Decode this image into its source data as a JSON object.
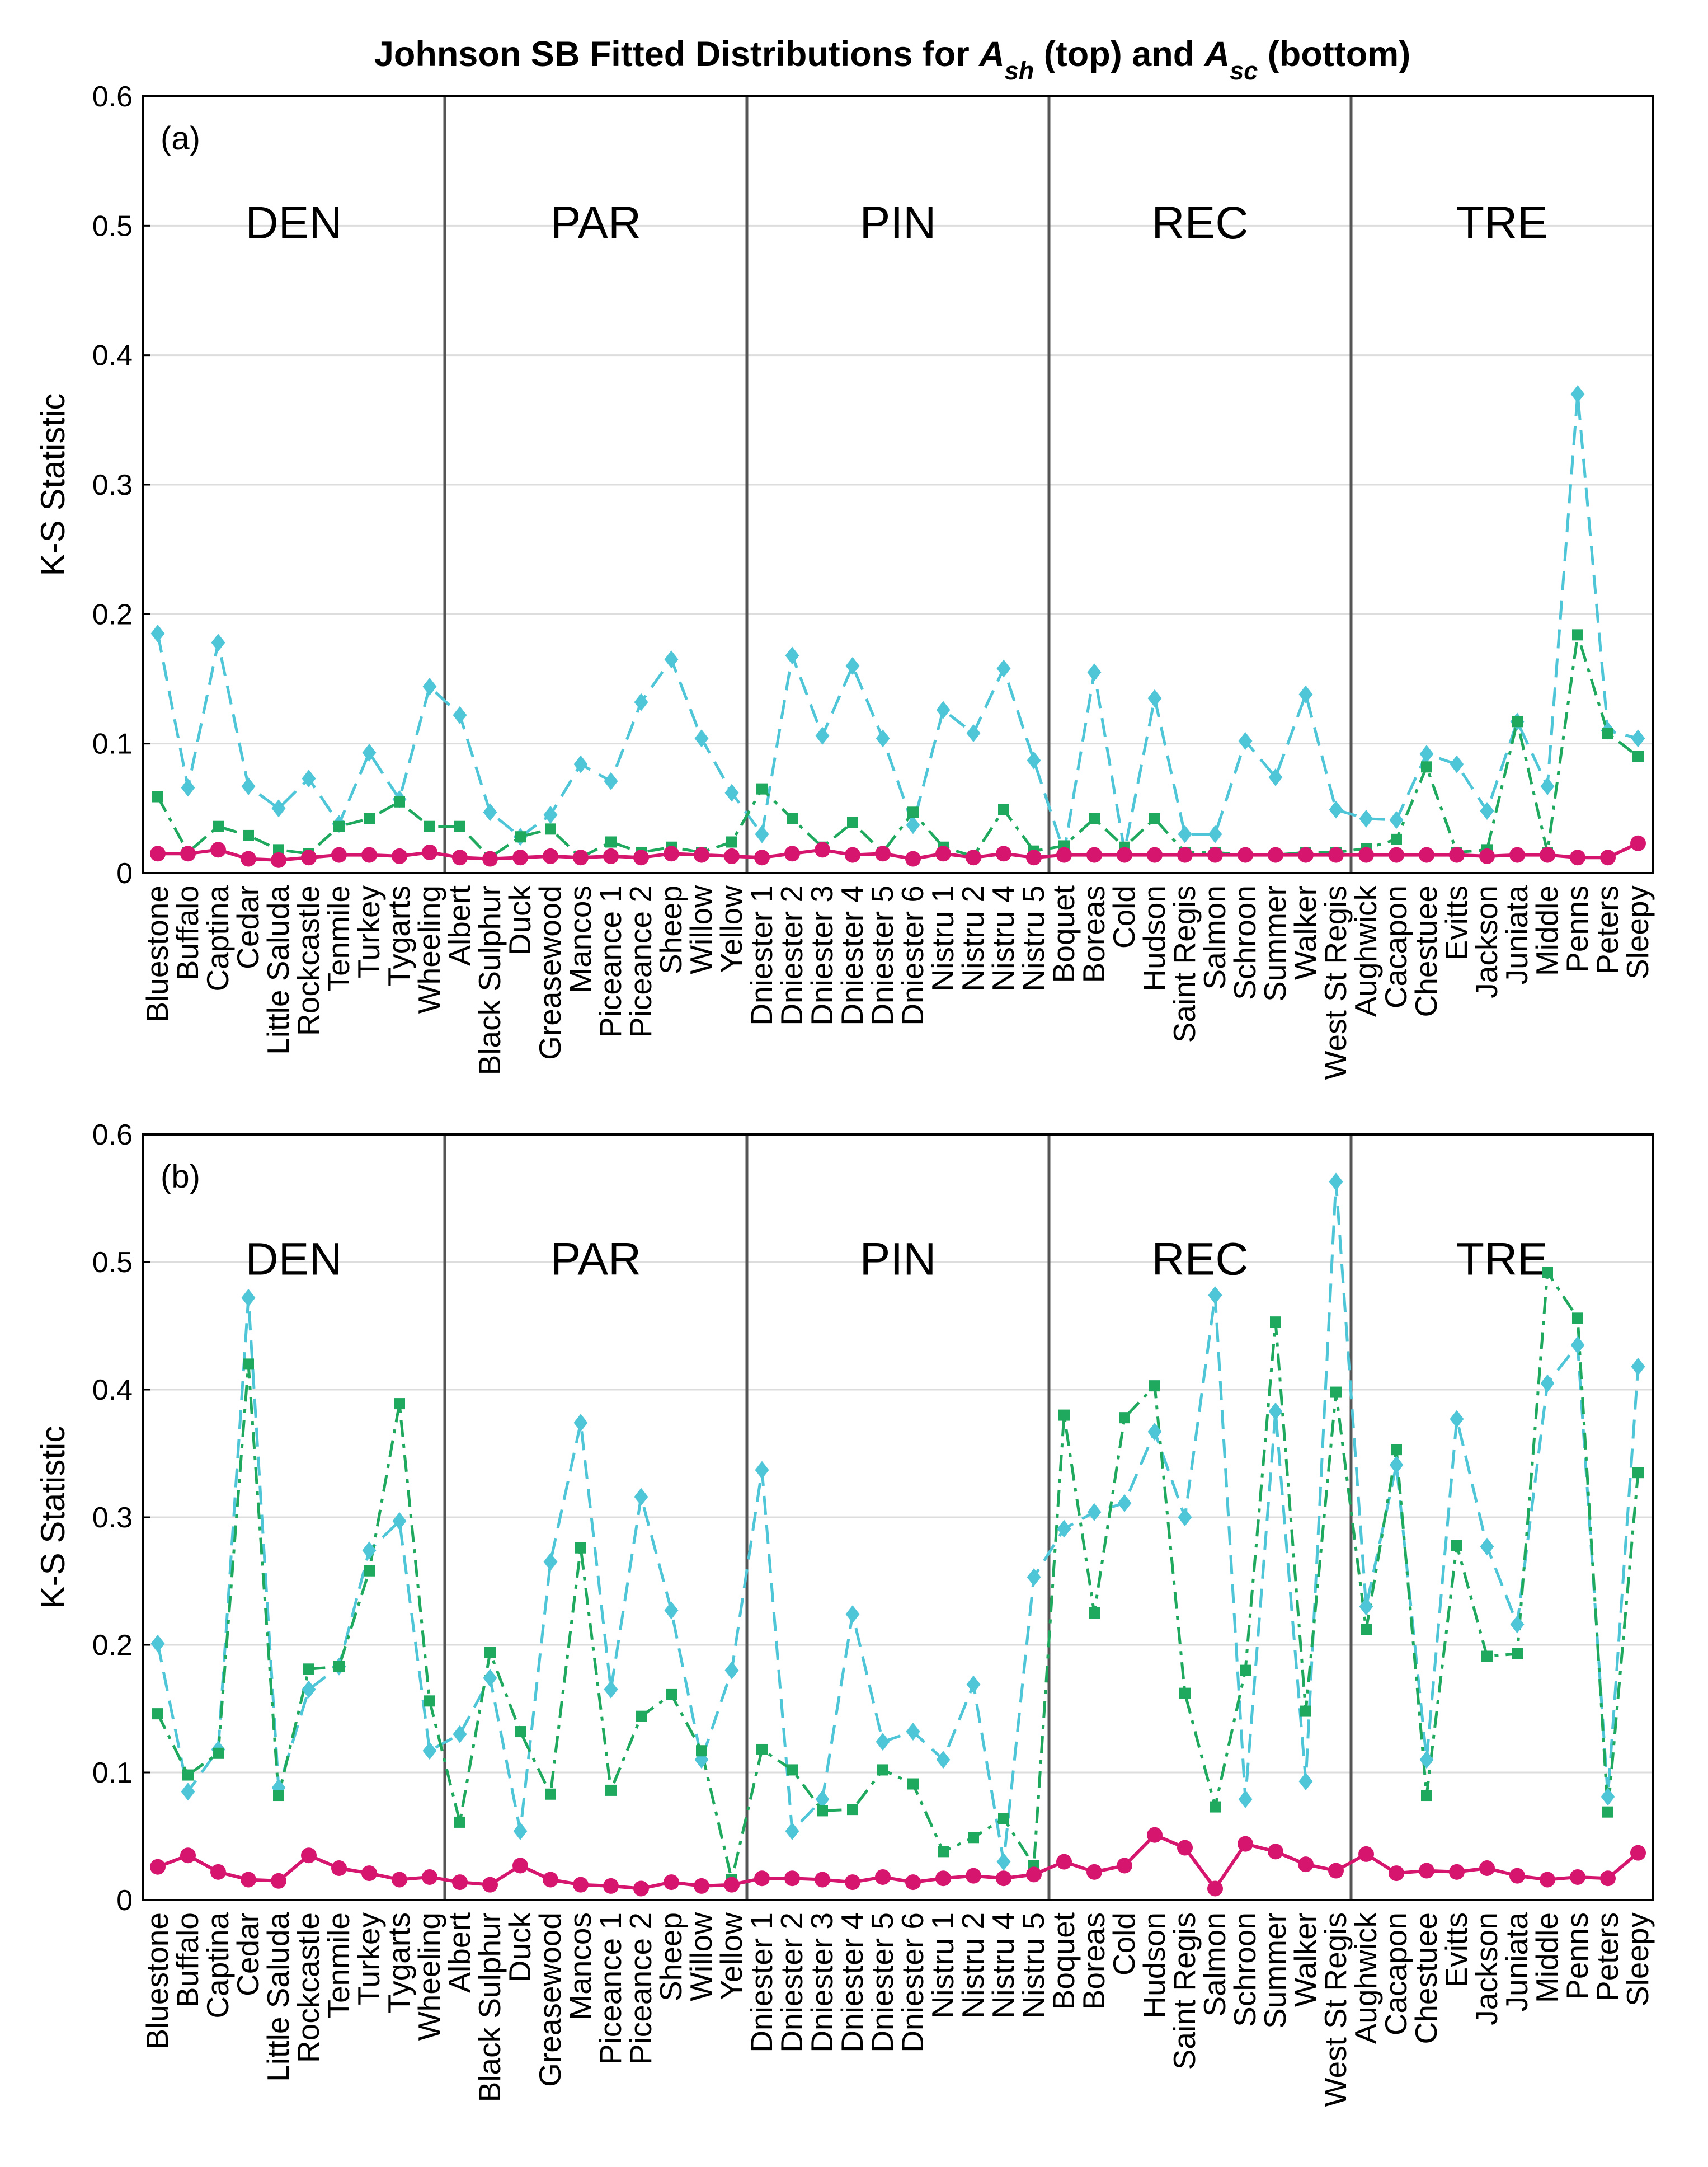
{
  "figure_title": {
    "prefix": "Johnson SB Fitted Distributions for ",
    "sym1": "A",
    "sub1": "sh",
    "middle": " (top) and ",
    "sym2": "A",
    "sub2": "sc",
    "suffix": " (bottom)"
  },
  "colors": {
    "cyan": "#4EC6D8",
    "green": "#1FA95F",
    "magenta": "#D6166E",
    "divider": "#555555",
    "grid": "#dddddd"
  },
  "chart_data": [
    {
      "type": "line",
      "panel_label": "(a)",
      "title": "Johnson SB Fitted Distributions for A_sh (top)",
      "xlabel": "",
      "ylabel": "K-S Statistic",
      "ylim": [
        0,
        0.6
      ],
      "yticks": [
        "0",
        "0.1",
        "0.2",
        "0.3",
        "0.4",
        "0.5",
        "0.6"
      ],
      "grid": true,
      "regions": [
        {
          "label": "DEN",
          "start": 0,
          "end": 9
        },
        {
          "label": "PAR",
          "start": 10,
          "end": 19
        },
        {
          "label": "PIN",
          "start": 20,
          "end": 29
        },
        {
          "label": "REC",
          "start": 30,
          "end": 39
        },
        {
          "label": "TRE",
          "start": 40,
          "end": 49
        }
      ],
      "categories": [
        "Bluestone",
        "Buffalo",
        "Captina",
        "Cedar",
        "Little Saluda",
        "Rockcastle",
        "Tenmile",
        "Turkey",
        "Tygarts",
        "Wheeling",
        "Albert",
        "Black Sulphur",
        "Duck",
        "Greasewood",
        "Mancos",
        "Piceance 1",
        "Piceance 2",
        "Sheep",
        "Willow",
        "Yellow",
        "Dniester 1",
        "Dniester 2",
        "Dniester 3",
        "Dniester 4",
        "Dniester 5",
        "Dniester 6",
        "Nistru 1",
        "Nistru 2",
        "Nistru 4",
        "Nistru 5",
        "Boquet",
        "Boreas",
        "Cold",
        "Hudson",
        "Saint Regis",
        "Salmon",
        "Schroon",
        "Summer",
        "Walker",
        "West St Regis",
        "Aughwick",
        "Cacapon",
        "Chestuee",
        "Evitts",
        "Jackson",
        "Juniata",
        "Middle",
        "Penns",
        "Peters",
        "Sleepy"
      ],
      "series": [
        {
          "name": "cyan diamonds (dashed)",
          "color": "#4EC6D8",
          "marker": "diamond",
          "dash": "dashed",
          "values": [
            0.185,
            0.066,
            0.178,
            0.067,
            0.05,
            0.073,
            0.038,
            0.093,
            0.057,
            0.144,
            0.122,
            0.047,
            0.028,
            0.045,
            0.084,
            0.071,
            0.132,
            0.165,
            0.104,
            0.062,
            0.03,
            0.168,
            0.106,
            0.16,
            0.104,
            0.037,
            0.126,
            0.108,
            0.158,
            0.087,
            0.016,
            0.155,
            0.017,
            0.135,
            0.03,
            0.03,
            0.102,
            0.074,
            0.138,
            0.049,
            0.042,
            0.041,
            0.092,
            0.084,
            0.048,
            0.117,
            0.067,
            0.37,
            0.11,
            0.104
          ]
        },
        {
          "name": "green squares (dash-dot)",
          "color": "#1FA95F",
          "marker": "square",
          "dash": "dashdot",
          "values": [
            0.059,
            0.016,
            0.036,
            0.029,
            0.018,
            0.015,
            0.036,
            0.042,
            0.055,
            0.036,
            0.036,
            0.012,
            0.028,
            0.034,
            0.012,
            0.024,
            0.016,
            0.02,
            0.016,
            0.024,
            0.065,
            0.042,
            0.02,
            0.039,
            0.016,
            0.047,
            0.02,
            0.013,
            0.049,
            0.017,
            0.021,
            0.042,
            0.02,
            0.042,
            0.016,
            0.016,
            0.014,
            0.014,
            0.016,
            0.016,
            0.019,
            0.026,
            0.082,
            0.016,
            0.018,
            0.117,
            0.016,
            0.184,
            0.108,
            0.09
          ]
        },
        {
          "name": "magenta circles (solid)",
          "color": "#D6166E",
          "marker": "circle",
          "dash": "solid",
          "values": [
            0.015,
            0.015,
            0.018,
            0.011,
            0.01,
            0.012,
            0.014,
            0.014,
            0.013,
            0.016,
            0.012,
            0.011,
            0.012,
            0.013,
            0.012,
            0.013,
            0.012,
            0.015,
            0.014,
            0.013,
            0.012,
            0.015,
            0.018,
            0.014,
            0.015,
            0.011,
            0.015,
            0.012,
            0.015,
            0.012,
            0.014,
            0.014,
            0.014,
            0.014,
            0.014,
            0.014,
            0.014,
            0.014,
            0.014,
            0.014,
            0.014,
            0.014,
            0.014,
            0.014,
            0.013,
            0.014,
            0.014,
            0.012,
            0.012,
            0.023
          ]
        }
      ]
    },
    {
      "type": "line",
      "panel_label": "(b)",
      "title": "Johnson SB Fitted Distributions for A_sc (bottom)",
      "xlabel": "",
      "ylabel": "K-S Statistic",
      "ylim": [
        0,
        0.6
      ],
      "yticks": [
        "0",
        "0.1",
        "0.2",
        "0.3",
        "0.4",
        "0.5",
        "0.6"
      ],
      "grid": true,
      "regions": [
        {
          "label": "DEN",
          "start": 0,
          "end": 9
        },
        {
          "label": "PAR",
          "start": 10,
          "end": 19
        },
        {
          "label": "PIN",
          "start": 20,
          "end": 29
        },
        {
          "label": "REC",
          "start": 30,
          "end": 39
        },
        {
          "label": "TRE",
          "start": 40,
          "end": 49
        }
      ],
      "categories": [
        "Bluestone",
        "Buffalo",
        "Captina",
        "Cedar",
        "Little Saluda",
        "Rockcastle",
        "Tenmile",
        "Turkey",
        "Tygarts",
        "Wheeling",
        "Albert",
        "Black Sulphur",
        "Duck",
        "Greasewood",
        "Mancos",
        "Piceance 1",
        "Piceance 2",
        "Sheep",
        "Willow",
        "Yellow",
        "Dniester 1",
        "Dniester 2",
        "Dniester 3",
        "Dniester 4",
        "Dniester 5",
        "Dniester 6",
        "Nistru 1",
        "Nistru 2",
        "Nistru 4",
        "Nistru 5",
        "Boquet",
        "Boreas",
        "Cold",
        "Hudson",
        "Saint Regis",
        "Salmon",
        "Schroon",
        "Summer",
        "Walker",
        "West St Regis",
        "Aughwick",
        "Cacapon",
        "Chestuee",
        "Evitts",
        "Jackson",
        "Juniata",
        "Middle",
        "Penns",
        "Peters",
        "Sleepy"
      ],
      "series": [
        {
          "name": "cyan diamonds (dashed)",
          "color": "#4EC6D8",
          "marker": "diamond",
          "dash": "dashed",
          "values": [
            0.201,
            0.085,
            0.118,
            0.472,
            0.088,
            0.165,
            0.183,
            0.274,
            0.297,
            0.117,
            0.13,
            0.174,
            0.054,
            0.265,
            0.374,
            0.165,
            0.316,
            0.227,
            0.11,
            0.18,
            0.337,
            0.054,
            0.079,
            0.224,
            0.124,
            0.132,
            0.11,
            0.169,
            0.03,
            0.253,
            0.291,
            0.304,
            0.311,
            0.367,
            0.3,
            0.474,
            0.079,
            0.383,
            0.093,
            0.563,
            0.23,
            0.341,
            0.11,
            0.377,
            0.277,
            0.216,
            0.405,
            0.435,
            0.081,
            0.418
          ]
        },
        {
          "name": "green squares (dash-dot)",
          "color": "#1FA95F",
          "marker": "square",
          "dash": "dashdot",
          "values": [
            0.146,
            0.098,
            0.115,
            0.42,
            0.082,
            0.181,
            0.183,
            0.258,
            0.389,
            0.156,
            0.061,
            0.194,
            0.132,
            0.083,
            0.276,
            0.086,
            0.144,
            0.161,
            0.117,
            0.016,
            0.118,
            0.102,
            0.07,
            0.071,
            0.102,
            0.091,
            0.038,
            0.049,
            0.064,
            0.027,
            0.38,
            0.225,
            0.378,
            0.403,
            0.162,
            0.073,
            0.18,
            0.453,
            0.148,
            0.398,
            0.212,
            0.353,
            0.082,
            0.278,
            0.191,
            0.193,
            0.492,
            0.456,
            0.069,
            0.335
          ]
        },
        {
          "name": "magenta circles (solid)",
          "color": "#D6166E",
          "marker": "circle",
          "dash": "solid",
          "values": [
            0.026,
            0.035,
            0.022,
            0.016,
            0.015,
            0.035,
            0.025,
            0.021,
            0.016,
            0.018,
            0.014,
            0.012,
            0.027,
            0.016,
            0.012,
            0.011,
            0.009,
            0.014,
            0.011,
            0.012,
            0.017,
            0.017,
            0.016,
            0.014,
            0.018,
            0.014,
            0.017,
            0.019,
            0.017,
            0.02,
            0.03,
            0.022,
            0.027,
            0.051,
            0.041,
            0.009,
            0.044,
            0.038,
            0.028,
            0.023,
            0.036,
            0.021,
            0.023,
            0.022,
            0.025,
            0.019,
            0.016,
            0.018,
            0.017,
            0.037
          ]
        }
      ]
    }
  ]
}
